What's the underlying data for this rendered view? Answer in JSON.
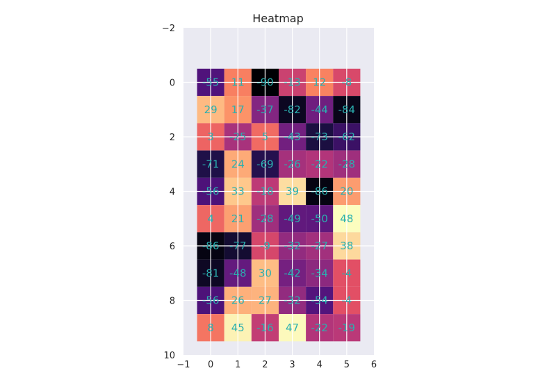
{
  "chart_data": {
    "type": "heatmap",
    "title": "Heatmap",
    "xlabel": "",
    "ylabel": "",
    "xlim": [
      -1,
      6
    ],
    "ylim": [
      10,
      -2
    ],
    "x_ticks": [
      "−1",
      "0",
      "1",
      "2",
      "3",
      "4",
      "5",
      "6"
    ],
    "y_ticks": [
      "−2",
      "0",
      "2",
      "4",
      "6",
      "8",
      "10"
    ],
    "grid": true,
    "colormap": "magma",
    "vmin": -90,
    "vmax": 48,
    "annotation_color": "#2ab0b0",
    "values": [
      [
        -55,
        11,
        -90,
        -13,
        12,
        -8
      ],
      [
        29,
        17,
        -37,
        -82,
        -44,
        -84
      ],
      [
        3,
        -25,
        5,
        -43,
        -73,
        -62
      ],
      [
        -71,
        24,
        -69,
        -26,
        -22,
        -28
      ],
      [
        -56,
        33,
        -18,
        39,
        -86,
        20
      ],
      [
        4,
        21,
        -28,
        -49,
        -50,
        48
      ],
      [
        -86,
        -77,
        -9,
        -32,
        -27,
        38
      ],
      [
        -81,
        -48,
        30,
        -42,
        -34,
        -4
      ],
      [
        -56,
        26,
        27,
        -32,
        -54,
        -4
      ],
      [
        8,
        45,
        -16,
        47,
        -22,
        -19
      ]
    ]
  }
}
